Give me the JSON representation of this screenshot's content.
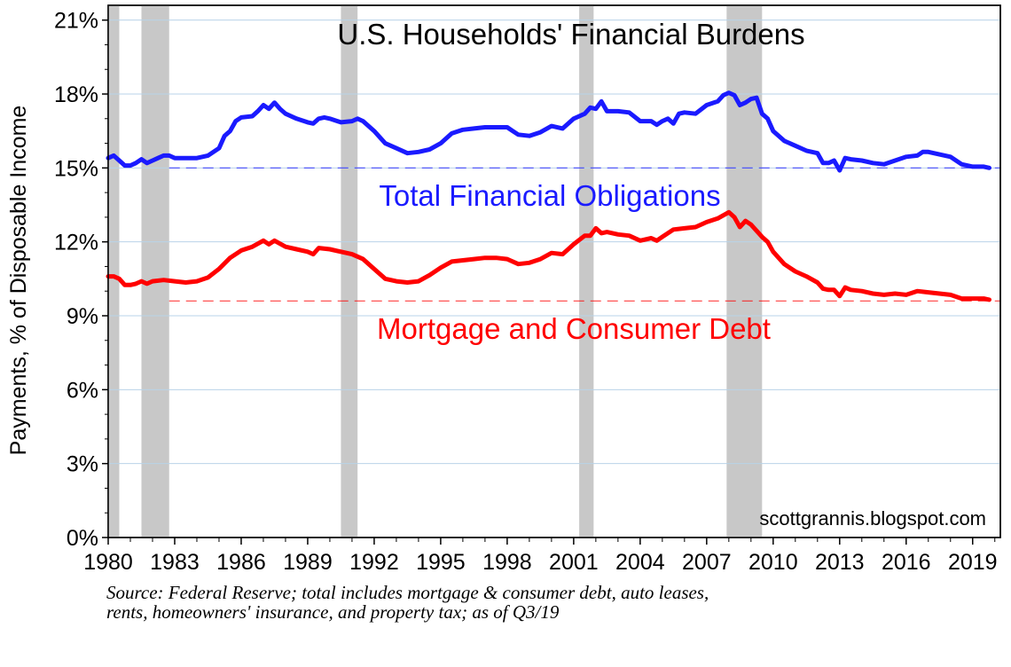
{
  "chart_data": {
    "type": "line",
    "title": "U.S. Households' Financial Burdens",
    "ylabel": "Payments, % of Disposable Income",
    "xlabel": "",
    "xlim": [
      1980.0,
      2020.25
    ],
    "ylim": [
      0,
      21.6
    ],
    "x_ticks": [
      1980,
      1983,
      1986,
      1989,
      1992,
      1995,
      1998,
      2001,
      2004,
      2007,
      2010,
      2013,
      2016,
      2019
    ],
    "x_tick_labels": [
      "1980",
      "1983",
      "1986",
      "1989",
      "1992",
      "1995",
      "1998",
      "2001",
      "2004",
      "2007",
      "2010",
      "2013",
      "2016",
      "2019"
    ],
    "y_ticks": [
      0,
      3,
      6,
      9,
      12,
      15,
      18,
      21
    ],
    "y_tick_labels": [
      "0%",
      "3%",
      "6%",
      "9%",
      "12%",
      "15%",
      "18%",
      "21%"
    ],
    "grid": true,
    "recessions": [
      {
        "start": 1980.0,
        "end": 1980.5
      },
      {
        "start": 1981.5,
        "end": 1982.75
      },
      {
        "start": 1990.5,
        "end": 1991.25
      },
      {
        "start": 2001.25,
        "end": 2001.9
      },
      {
        "start": 2007.9,
        "end": 2009.5
      }
    ],
    "series": [
      {
        "name": "Total Financial Obligations",
        "color": "#1a1aff",
        "reference_value": 15.0,
        "points": [
          [
            1980.0,
            15.4
          ],
          [
            1980.25,
            15.5
          ],
          [
            1980.5,
            15.3
          ],
          [
            1980.75,
            15.1
          ],
          [
            1981.0,
            15.1
          ],
          [
            1981.25,
            15.2
          ],
          [
            1981.5,
            15.35
          ],
          [
            1981.75,
            15.2
          ],
          [
            1982.0,
            15.3
          ],
          [
            1982.25,
            15.4
          ],
          [
            1982.5,
            15.5
          ],
          [
            1982.75,
            15.5
          ],
          [
            1983.0,
            15.4
          ],
          [
            1983.5,
            15.4
          ],
          [
            1984.0,
            15.4
          ],
          [
            1984.5,
            15.5
          ],
          [
            1985.0,
            15.8
          ],
          [
            1985.25,
            16.3
          ],
          [
            1985.5,
            16.5
          ],
          [
            1985.75,
            16.9
          ],
          [
            1986.0,
            17.05
          ],
          [
            1986.5,
            17.1
          ],
          [
            1986.75,
            17.3
          ],
          [
            1987.0,
            17.55
          ],
          [
            1987.25,
            17.4
          ],
          [
            1987.5,
            17.65
          ],
          [
            1987.75,
            17.4
          ],
          [
            1988.0,
            17.2
          ],
          [
            1988.5,
            17.0
          ],
          [
            1989.0,
            16.85
          ],
          [
            1989.25,
            16.8
          ],
          [
            1989.5,
            17.0
          ],
          [
            1989.75,
            17.05
          ],
          [
            1990.0,
            17.0
          ],
          [
            1990.5,
            16.85
          ],
          [
            1991.0,
            16.9
          ],
          [
            1991.25,
            17.0
          ],
          [
            1991.5,
            16.9
          ],
          [
            1992.0,
            16.5
          ],
          [
            1992.5,
            16.0
          ],
          [
            1993.0,
            15.8
          ],
          [
            1993.5,
            15.6
          ],
          [
            1994.0,
            15.65
          ],
          [
            1994.5,
            15.75
          ],
          [
            1995.0,
            16.0
          ],
          [
            1995.5,
            16.4
          ],
          [
            1996.0,
            16.55
          ],
          [
            1996.5,
            16.6
          ],
          [
            1997.0,
            16.65
          ],
          [
            1997.5,
            16.65
          ],
          [
            1998.0,
            16.65
          ],
          [
            1998.25,
            16.5
          ],
          [
            1998.5,
            16.35
          ],
          [
            1999.0,
            16.3
          ],
          [
            1999.5,
            16.45
          ],
          [
            2000.0,
            16.7
          ],
          [
            2000.5,
            16.6
          ],
          [
            2001.0,
            17.0
          ],
          [
            2001.5,
            17.2
          ],
          [
            2001.75,
            17.45
          ],
          [
            2002.0,
            17.4
          ],
          [
            2002.25,
            17.7
          ],
          [
            2002.5,
            17.3
          ],
          [
            2003.0,
            17.3
          ],
          [
            2003.5,
            17.25
          ],
          [
            2004.0,
            16.9
          ],
          [
            2004.5,
            16.9
          ],
          [
            2004.75,
            16.75
          ],
          [
            2005.0,
            16.9
          ],
          [
            2005.25,
            17.0
          ],
          [
            2005.5,
            16.8
          ],
          [
            2005.75,
            17.2
          ],
          [
            2006.0,
            17.25
          ],
          [
            2006.5,
            17.2
          ],
          [
            2007.0,
            17.55
          ],
          [
            2007.5,
            17.7
          ],
          [
            2007.75,
            17.95
          ],
          [
            2008.0,
            18.05
          ],
          [
            2008.25,
            17.95
          ],
          [
            2008.5,
            17.55
          ],
          [
            2008.75,
            17.65
          ],
          [
            2009.0,
            17.8
          ],
          [
            2009.25,
            17.85
          ],
          [
            2009.5,
            17.2
          ],
          [
            2009.75,
            17.0
          ],
          [
            2010.0,
            16.5
          ],
          [
            2010.5,
            16.1
          ],
          [
            2011.0,
            15.9
          ],
          [
            2011.5,
            15.7
          ],
          [
            2012.0,
            15.6
          ],
          [
            2012.25,
            15.2
          ],
          [
            2012.5,
            15.2
          ],
          [
            2012.75,
            15.3
          ],
          [
            2013.0,
            14.9
          ],
          [
            2013.25,
            15.4
          ],
          [
            2013.5,
            15.35
          ],
          [
            2014.0,
            15.3
          ],
          [
            2014.5,
            15.2
          ],
          [
            2015.0,
            15.15
          ],
          [
            2015.5,
            15.3
          ],
          [
            2016.0,
            15.45
          ],
          [
            2016.5,
            15.5
          ],
          [
            2016.75,
            15.65
          ],
          [
            2017.0,
            15.65
          ],
          [
            2017.5,
            15.55
          ],
          [
            2018.0,
            15.45
          ],
          [
            2018.5,
            15.15
          ],
          [
            2019.0,
            15.05
          ],
          [
            2019.5,
            15.05
          ],
          [
            2019.75,
            15.0
          ]
        ]
      },
      {
        "name": "Mortgage and Consumer Debt",
        "color": "#ff0000",
        "reference_value": 9.6,
        "points": [
          [
            1980.0,
            10.6
          ],
          [
            1980.25,
            10.6
          ],
          [
            1980.5,
            10.5
          ],
          [
            1980.75,
            10.25
          ],
          [
            1981.0,
            10.25
          ],
          [
            1981.25,
            10.3
          ],
          [
            1981.5,
            10.4
          ],
          [
            1981.75,
            10.3
          ],
          [
            1982.0,
            10.4
          ],
          [
            1982.5,
            10.45
          ],
          [
            1983.0,
            10.4
          ],
          [
            1983.5,
            10.35
          ],
          [
            1984.0,
            10.4
          ],
          [
            1984.5,
            10.55
          ],
          [
            1985.0,
            10.9
          ],
          [
            1985.5,
            11.35
          ],
          [
            1986.0,
            11.65
          ],
          [
            1986.5,
            11.8
          ],
          [
            1987.0,
            12.05
          ],
          [
            1987.25,
            11.9
          ],
          [
            1987.5,
            12.05
          ],
          [
            1988.0,
            11.8
          ],
          [
            1988.5,
            11.7
          ],
          [
            1989.0,
            11.6
          ],
          [
            1989.25,
            11.5
          ],
          [
            1989.5,
            11.75
          ],
          [
            1990.0,
            11.7
          ],
          [
            1990.5,
            11.6
          ],
          [
            1991.0,
            11.5
          ],
          [
            1991.5,
            11.3
          ],
          [
            1992.0,
            10.9
          ],
          [
            1992.5,
            10.5
          ],
          [
            1993.0,
            10.4
          ],
          [
            1993.5,
            10.35
          ],
          [
            1994.0,
            10.4
          ],
          [
            1994.5,
            10.65
          ],
          [
            1995.0,
            10.95
          ],
          [
            1995.5,
            11.2
          ],
          [
            1996.0,
            11.25
          ],
          [
            1996.5,
            11.3
          ],
          [
            1997.0,
            11.35
          ],
          [
            1997.5,
            11.35
          ],
          [
            1998.0,
            11.3
          ],
          [
            1998.5,
            11.1
          ],
          [
            1999.0,
            11.15
          ],
          [
            1999.5,
            11.3
          ],
          [
            2000.0,
            11.55
          ],
          [
            2000.5,
            11.5
          ],
          [
            2001.0,
            11.9
          ],
          [
            2001.5,
            12.25
          ],
          [
            2001.75,
            12.25
          ],
          [
            2002.0,
            12.55
          ],
          [
            2002.25,
            12.35
          ],
          [
            2002.5,
            12.4
          ],
          [
            2003.0,
            12.3
          ],
          [
            2003.5,
            12.25
          ],
          [
            2004.0,
            12.05
          ],
          [
            2004.5,
            12.15
          ],
          [
            2004.75,
            12.05
          ],
          [
            2005.0,
            12.2
          ],
          [
            2005.5,
            12.5
          ],
          [
            2006.0,
            12.55
          ],
          [
            2006.5,
            12.6
          ],
          [
            2007.0,
            12.8
          ],
          [
            2007.5,
            12.95
          ],
          [
            2008.0,
            13.2
          ],
          [
            2008.25,
            13.0
          ],
          [
            2008.5,
            12.6
          ],
          [
            2008.75,
            12.85
          ],
          [
            2009.0,
            12.7
          ],
          [
            2009.5,
            12.2
          ],
          [
            2009.75,
            12.0
          ],
          [
            2010.0,
            11.6
          ],
          [
            2010.5,
            11.1
          ],
          [
            2011.0,
            10.8
          ],
          [
            2011.5,
            10.6
          ],
          [
            2012.0,
            10.35
          ],
          [
            2012.25,
            10.1
          ],
          [
            2012.5,
            10.05
          ],
          [
            2012.75,
            10.05
          ],
          [
            2013.0,
            9.8
          ],
          [
            2013.25,
            10.15
          ],
          [
            2013.5,
            10.05
          ],
          [
            2014.0,
            10.0
          ],
          [
            2014.5,
            9.9
          ],
          [
            2015.0,
            9.85
          ],
          [
            2015.5,
            9.9
          ],
          [
            2016.0,
            9.85
          ],
          [
            2016.5,
            10.0
          ],
          [
            2017.0,
            9.95
          ],
          [
            2017.5,
            9.9
          ],
          [
            2018.0,
            9.85
          ],
          [
            2018.5,
            9.7
          ],
          [
            2019.0,
            9.7
          ],
          [
            2019.5,
            9.7
          ],
          [
            2019.75,
            9.65
          ]
        ]
      }
    ]
  },
  "watermark": "scottgrannis.blogspot.com",
  "source_note": "Source: Federal Reserve; total includes mortgage & consumer debt, auto leases, rents, homeowners' insurance, and property tax; as of Q3/19"
}
